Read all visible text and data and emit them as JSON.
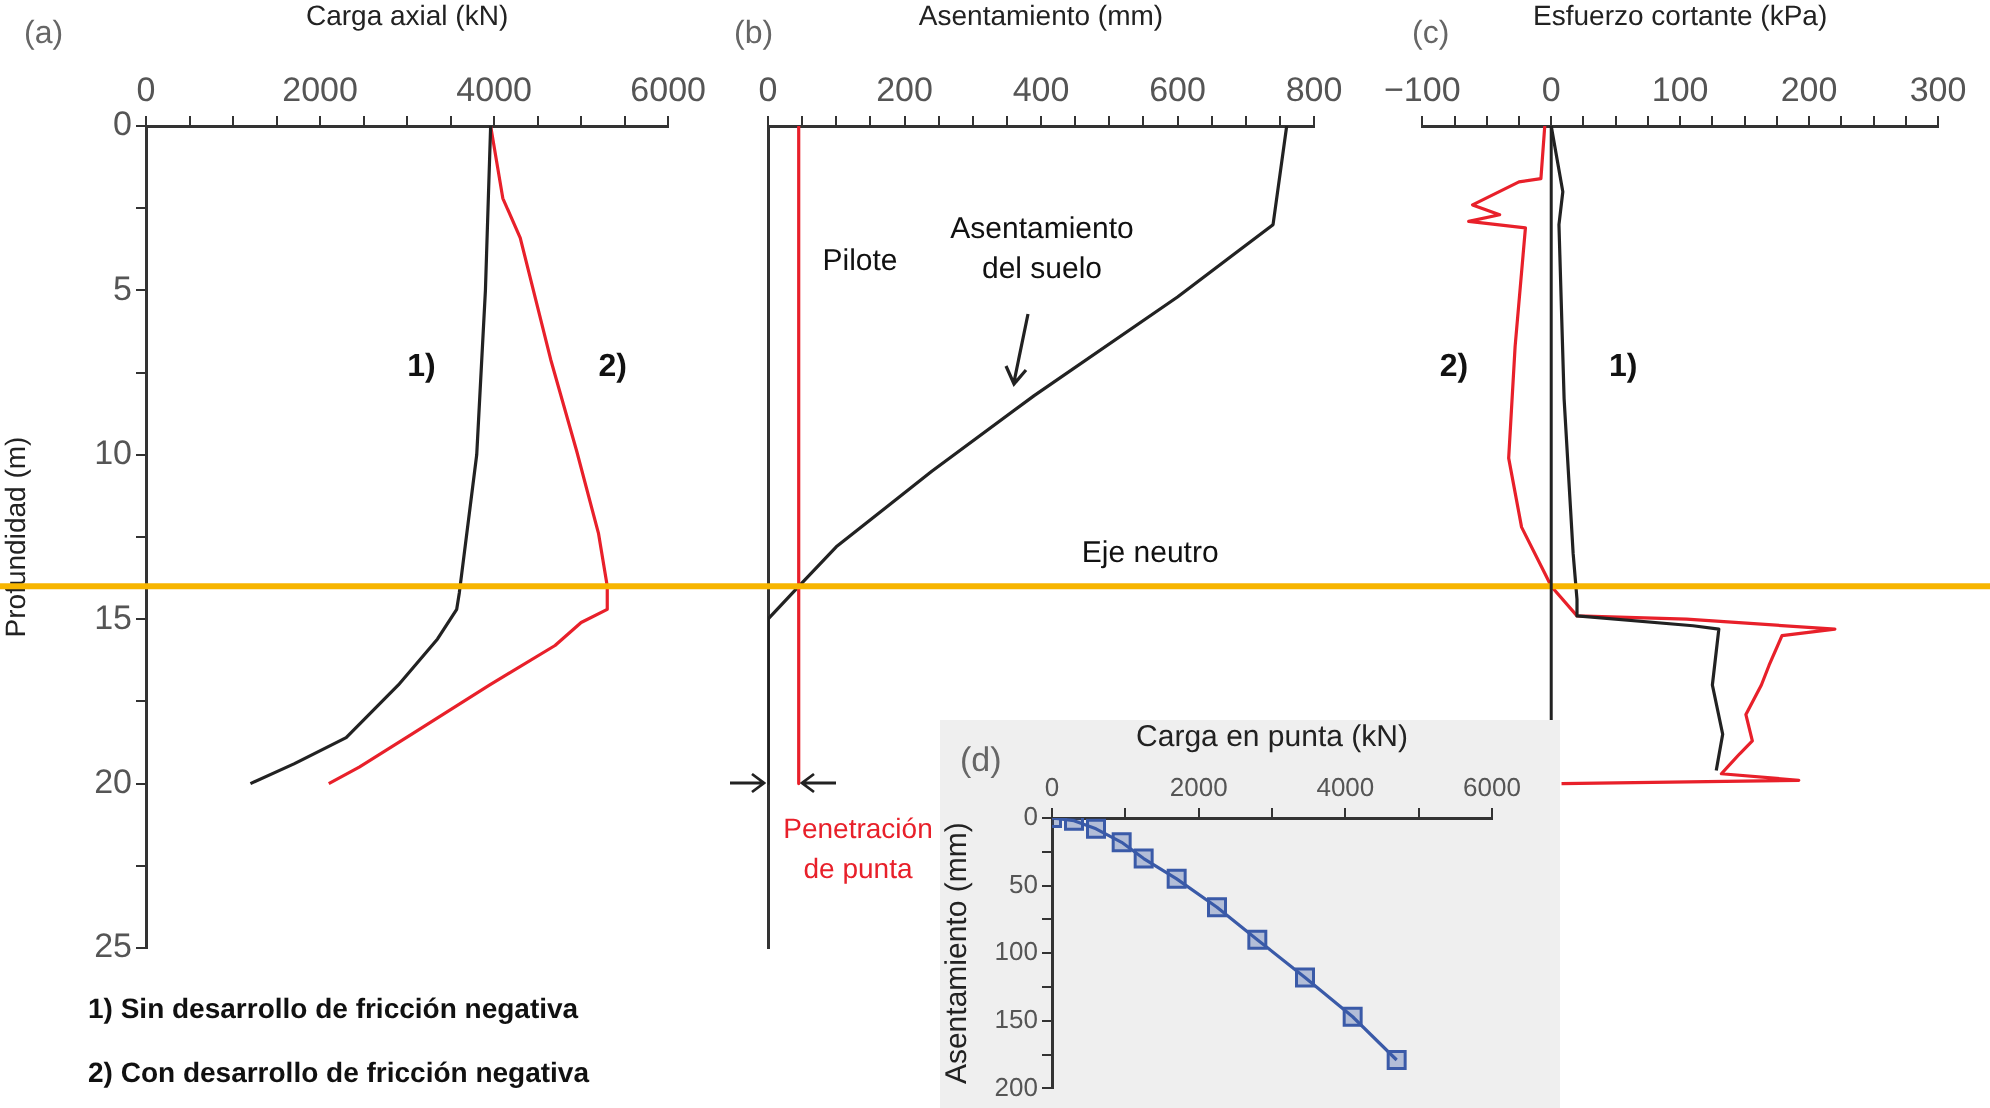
{
  "chart_data": [
    {
      "type": "line",
      "xlabel": "Carga axial (kN)",
      "ylabel": "Profundidad (m)",
      "xlim": [
        0,
        6000
      ],
      "xticks": [
        0,
        {
          "value": 500,
          "label": null
        },
        {
          "value": 1000,
          "label": null
        },
        {
          "value": 1500,
          "label": null
        },
        2000,
        {
          "value": 2500,
          "label": null
        },
        {
          "value": 3000,
          "label": null
        },
        {
          "value": 3500,
          "label": null
        },
        4000,
        {
          "value": 4500,
          "label": null
        },
        {
          "value": 5000,
          "label": null
        },
        {
          "value": 5500,
          "label": null
        },
        6000
      ],
      "ylim": [
        25,
        0
      ],
      "yticks": [
        0,
        {
          "value": 2.5,
          "label": null
        },
        5,
        {
          "value": 7.5,
          "label": null
        },
        10,
        {
          "value": 12.5,
          "label": null
        },
        15,
        {
          "value": 17.5,
          "label": null
        },
        20,
        {
          "value": 22.5,
          "label": null
        },
        25
      ],
      "series": [
        {
          "name": "1)",
          "color": "#222222",
          "x": [
            3960,
            3900,
            3800,
            3600,
            3570,
            3350,
            2900,
            2300,
            1700,
            1200
          ],
          "values": [
            0,
            5,
            10,
            14.2,
            14.7,
            15.6,
            17,
            18.6,
            19.4,
            20
          ]
        },
        {
          "name": "2)",
          "color": "#e8202a",
          "x": [
            3960,
            4100,
            4300,
            4650,
            4950,
            5200,
            5300,
            5300,
            5000,
            4700,
            3950,
            3050,
            2450,
            2100
          ],
          "values": [
            0,
            2.2,
            3.4,
            7.1,
            9.9,
            12.4,
            14,
            14.7,
            15.1,
            15.8,
            17,
            18.5,
            19.5,
            20
          ]
        }
      ],
      "ref_lines": [
        {
          "axis": "y",
          "value": 14,
          "color": "#f7b500"
        }
      ],
      "annotations": [
        "(a)",
        "1) Sin desarrollo de fricción negativa",
        "2) Con desarrollo de fricción negativa"
      ]
    },
    {
      "type": "line",
      "xlabel": "Asentamiento (mm)",
      "xlim": [
        0,
        800
      ],
      "xticks": [
        0,
        {
          "value": 50,
          "label": null
        },
        {
          "value": 100,
          "label": null
        },
        {
          "value": 150,
          "label": null
        },
        200,
        {
          "value": 250,
          "label": null
        },
        {
          "value": 300,
          "label": null
        },
        {
          "value": 350,
          "label": null
        },
        400,
        {
          "value": 450,
          "label": null
        },
        {
          "value": 500,
          "label": null
        },
        {
          "value": 550,
          "label": null
        },
        600,
        {
          "value": 650,
          "label": null
        },
        {
          "value": 700,
          "label": null
        },
        {
          "value": 750,
          "label": null
        },
        800
      ],
      "ylim": [
        25,
        0
      ],
      "tick_labels": "x",
      "series": [
        {
          "color": "#e8202a",
          "x": [
            45,
            45
          ],
          "values": [
            0,
            20
          ]
        },
        {
          "color": "#222222",
          "x": [
            760,
            740,
            600,
            390,
            240,
            100,
            45,
            0,
            0
          ],
          "values": [
            0,
            3,
            5.2,
            8.2,
            10.5,
            12.8,
            14,
            15,
            20
          ]
        }
      ],
      "ref_lines": [
        {
          "axis": "y",
          "value": 14,
          "label": "Eje neutro",
          "color": "#f7b500"
        }
      ],
      "annotations": [
        "(b)",
        "Pilote",
        "Asentamiento del suelo",
        "Penetración de punta"
      ]
    },
    {
      "type": "line",
      "xlabel": "Esfuerzo cortante (kPa)",
      "xlim": [
        -100,
        300
      ],
      "xticks": [
        {
          "value": -100,
          "label": "−100"
        },
        {
          "value": -75,
          "label": null
        },
        {
          "value": -50,
          "label": null
        },
        {
          "value": -25,
          "label": null
        },
        0,
        {
          "value": 25,
          "label": null
        },
        {
          "value": 50,
          "label": null
        },
        {
          "value": 75,
          "label": null
        },
        100,
        {
          "value": 125,
          "label": null
        },
        {
          "value": 150,
          "label": null
        },
        {
          "value": 175,
          "label": null
        },
        200,
        {
          "value": 225,
          "label": null
        },
        {
          "value": 250,
          "label": null
        },
        {
          "value": 275,
          "label": null
        },
        300
      ],
      "ylim": [
        25,
        0
      ],
      "tick_labels": "x",
      "series": [
        {
          "name": "1)",
          "color": "#222222",
          "x": [
            0,
            9,
            6,
            10,
            17,
            20,
            20,
            110,
            130,
            125,
            133,
            128
          ],
          "values": [
            0,
            2,
            3,
            8.3,
            13,
            14.4,
            14.9,
            15.2,
            15.3,
            17,
            18.5,
            19.6
          ]
        },
        {
          "name": "2)",
          "color": "#e8202a",
          "x": [
            -5,
            -8,
            -25,
            -61,
            -40,
            -64,
            -20,
            -28,
            -33,
            -23,
            -5,
            0,
            20,
            105,
            220,
            179,
            169,
            163,
            151,
            156,
            146,
            132,
            192,
            8
          ],
          "values": [
            0,
            1.6,
            1.7,
            2.4,
            2.7,
            2.9,
            3.1,
            6.7,
            10.1,
            12.2,
            13.6,
            14,
            14.9,
            15,
            15.3,
            15.5,
            16.4,
            17,
            17.9,
            18.7,
            19.1,
            19.7,
            19.9,
            20
          ]
        }
      ],
      "ref_lines": [
        {
          "axis": "y",
          "value": 14,
          "color": "#f7b500"
        },
        {
          "axis": "x",
          "value": 0,
          "color": "#222222"
        }
      ],
      "annotations": [
        "(c)"
      ]
    },
    {
      "type": "line",
      "marker": "square",
      "xlabel": "Carga en punta (kN)",
      "ylabel": "Asentamiento (mm)",
      "xlim": [
        0,
        6000
      ],
      "xticks": [
        0,
        {
          "value": 1000,
          "label": null
        },
        2000,
        {
          "value": 3000,
          "label": null
        },
        4000,
        {
          "value": 5000,
          "label": null
        },
        6000
      ],
      "ylim": [
        200,
        0
      ],
      "yticks": [
        0,
        {
          "value": 25,
          "label": null
        },
        50,
        {
          "value": 75,
          "label": null
        },
        100,
        {
          "value": 125,
          "label": null
        },
        150,
        {
          "value": 175,
          "label": null
        },
        200
      ],
      "series": [
        {
          "color": "#3a5aa8",
          "x": [
            0,
            300,
            600,
            950,
            1250,
            1700,
            2250,
            2800,
            3450,
            4100,
            4700
          ],
          "values": [
            0,
            2,
            8,
            18,
            30,
            45,
            66,
            90,
            118,
            147,
            179
          ]
        }
      ],
      "annotations": [
        "(d)"
      ]
    }
  ]
}
